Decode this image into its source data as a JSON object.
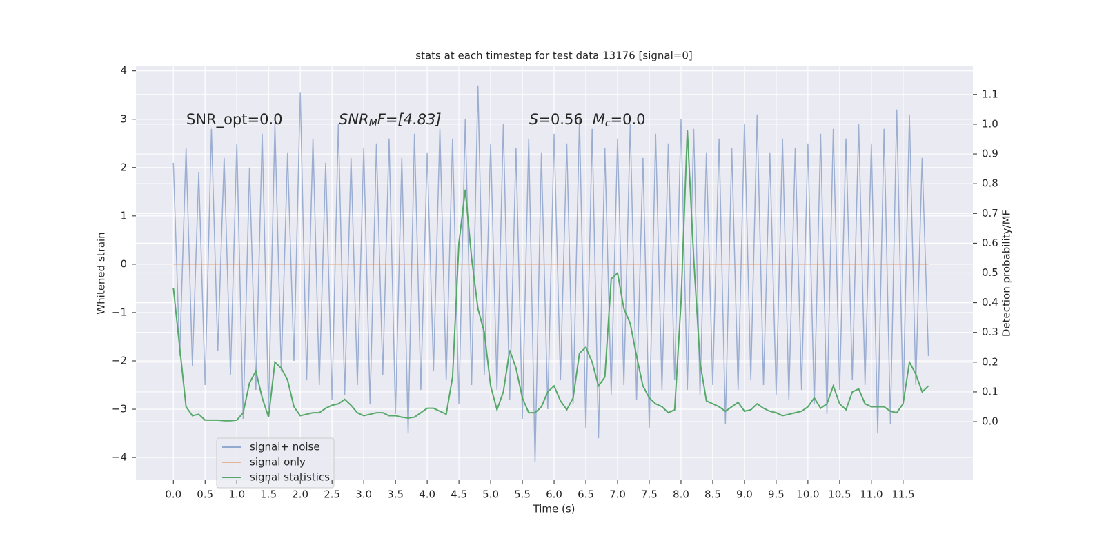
{
  "chart_data": {
    "type": "line",
    "title": "stats at each timestep for test data 13176 [signal=0]",
    "xlabel": "Time (s)",
    "ylabel": "Whitened strain",
    "y2label": "Detection probability/MF",
    "annotations": [
      [
        "SNR_opt=0.0"
      ],
      [
        "SNR",
        "M",
        "F=[4.83]"
      ],
      [
        "S",
        "=0.56",
        "M",
        "c",
        "=0.0"
      ]
    ],
    "grid": true,
    "legend": "lower left",
    "xlim": [
      -0.59,
      12.6
    ],
    "ylim": [
      -4.47,
      4.11
    ],
    "y2lim": [
      -0.197,
      1.197
    ],
    "xticks": [
      {
        "value": 0,
        "label": "0.0"
      },
      0.5,
      {
        "value": 1,
        "label": "1.0"
      },
      1.5,
      {
        "value": 2,
        "label": "2.0"
      },
      2.5,
      {
        "value": 3,
        "label": "3.0"
      },
      3.5,
      {
        "value": 4,
        "label": "4.0"
      },
      4.5,
      {
        "value": 5,
        "label": "5.0"
      },
      5.5,
      {
        "value": 6,
        "label": "6.0"
      },
      6.5,
      {
        "value": 7,
        "label": "7.0"
      },
      7.5,
      {
        "value": 8,
        "label": "8.0"
      },
      8.5,
      {
        "value": 9,
        "label": "9.0"
      },
      9.5,
      {
        "value": 10,
        "label": "10.0"
      },
      10.5,
      {
        "value": 11,
        "label": "11.0"
      },
      11.5
    ],
    "yticks": [
      {
        "value": -4,
        "label": "−4"
      },
      {
        "value": -3,
        "label": "−3"
      },
      {
        "value": -2,
        "label": "−2"
      },
      {
        "value": -1,
        "label": "−1"
      },
      0,
      1,
      2,
      3,
      4
    ],
    "y2ticks": [
      {
        "value": 0,
        "label": "0.0"
      },
      0.1,
      0.2,
      0.3,
      0.4,
      0.5,
      0.6,
      0.7,
      0.8,
      0.9,
      {
        "value": 1,
        "label": "1.0"
      },
      1.1
    ],
    "x": [
      0,
      0.1,
      0.2,
      0.3,
      0.4,
      0.5,
      0.6,
      0.7,
      0.8,
      0.9,
      1,
      1.1,
      1.2,
      1.3,
      1.4,
      1.5,
      1.6,
      1.7,
      1.8,
      1.9,
      2,
      2.1,
      2.2,
      2.3,
      2.4,
      2.5,
      2.6,
      2.7,
      2.8,
      2.9,
      3,
      3.1,
      3.2,
      3.3,
      3.4,
      3.5,
      3.6,
      3.7,
      3.8,
      3.9,
      4,
      4.1,
      4.2,
      4.3,
      4.4,
      4.5,
      4.6,
      4.7,
      4.8,
      4.9,
      5,
      5.1,
      5.2,
      5.3,
      5.4,
      5.5,
      5.6,
      5.7,
      5.8,
      5.9,
      6,
      6.1,
      6.2,
      6.3,
      6.4,
      6.5,
      6.6,
      6.7,
      6.8,
      6.9,
      7,
      7.1,
      7.2,
      7.3,
      7.4,
      7.5,
      7.6,
      7.7,
      7.8,
      7.9,
      8,
      8.1,
      8.2,
      8.3,
      8.4,
      8.5,
      8.6,
      8.7,
      8.8,
      8.9,
      9,
      9.1,
      9.2,
      9.3,
      9.4,
      9.5,
      9.6,
      9.7,
      9.8,
      9.9,
      10,
      10.1,
      10.2,
      10.3,
      10.4,
      10.5,
      10.6,
      10.7,
      10.8,
      10.9,
      11,
      11.1,
      11.2,
      11.3,
      11.4,
      11.5,
      11.6,
      11.7,
      11.8,
      11.9
    ],
    "series": [
      {
        "name": "signal+ noise",
        "color": "#4c72b0",
        "values": [
          2.1,
          -1.9,
          2.4,
          -2.1,
          1.9,
          -2.5,
          2.8,
          -1.8,
          2.2,
          -2.3,
          2.5,
          -3.2,
          2.0,
          -2.6,
          2.7,
          -3.0,
          2.9,
          -2.2,
          2.3,
          -2.0,
          3.55,
          -2.4,
          2.6,
          -2.5,
          2.1,
          -2.8,
          2.9,
          -2.7,
          2.2,
          -2.5,
          2.4,
          -2.9,
          2.5,
          -2.3,
          2.6,
          -3.1,
          2.2,
          -3.5,
          2.7,
          -2.6,
          2.3,
          -2.2,
          2.8,
          -2.4,
          2.6,
          -2.9,
          3.0,
          -2.5,
          3.7,
          -2.3,
          2.5,
          -2.6,
          2.9,
          -2.8,
          2.4,
          -3.2,
          2.6,
          -4.1,
          2.3,
          -3.0,
          2.7,
          -2.4,
          2.5,
          -2.9,
          3.0,
          -3.4,
          2.8,
          -3.6,
          2.4,
          -2.7,
          2.6,
          -2.5,
          2.9,
          -2.8,
          2.2,
          -3.4,
          2.7,
          -2.6,
          2.5,
          -2.4,
          3.0,
          -2.6,
          2.8,
          -2.7,
          2.3,
          -2.5,
          2.6,
          -3.3,
          2.4,
          -2.6,
          2.9,
          -2.4,
          3.1,
          -2.5,
          2.3,
          -2.7,
          2.6,
          -2.8,
          2.4,
          -2.6,
          2.5,
          -2.9,
          2.7,
          -3.1,
          2.8,
          -2.6,
          2.6,
          -2.4,
          2.9,
          -2.5,
          2.5,
          -3.5,
          2.8,
          -3.3,
          3.2,
          -2.9,
          3.1,
          -2.5,
          2.2,
          -1.9
        ]
      },
      {
        "name": "signal only",
        "color": "#dd8452",
        "values": [
          0,
          0,
          0,
          0,
          0,
          0,
          0,
          0,
          0,
          0,
          0,
          0,
          0,
          0,
          0,
          0,
          0,
          0,
          0,
          0,
          0,
          0,
          0,
          0,
          0,
          0,
          0,
          0,
          0,
          0,
          0,
          0,
          0,
          0,
          0,
          0,
          0,
          0,
          0,
          0,
          0,
          0,
          0,
          0,
          0,
          0,
          0,
          0,
          0,
          0,
          0,
          0,
          0,
          0,
          0,
          0,
          0,
          0,
          0,
          0,
          0,
          0,
          0,
          0,
          0,
          0,
          0,
          0,
          0,
          0,
          0,
          0,
          0,
          0,
          0,
          0,
          0,
          0,
          0,
          0,
          0,
          0,
          0,
          0,
          0,
          0,
          0,
          0,
          0,
          0,
          0,
          0,
          0,
          0,
          0,
          0,
          0,
          0,
          0,
          0,
          0,
          0,
          0,
          0,
          0,
          0,
          0,
          0,
          0,
          0,
          0,
          0,
          0,
          0,
          0,
          0,
          0,
          0,
          0,
          0
        ]
      },
      {
        "name": "signal statistics",
        "color": "#55a868",
        "axis": "y2",
        "values": [
          0.45,
          0.25,
          0.05,
          0.02,
          0.025,
          0.005,
          0.005,
          0.005,
          0.003,
          0.003,
          0.005,
          0.03,
          0.13,
          0.17,
          0.08,
          0.015,
          0.2,
          0.18,
          0.14,
          0.05,
          0.02,
          0.025,
          0.03,
          0.03,
          0.045,
          0.055,
          0.06,
          0.075,
          0.055,
          0.03,
          0.02,
          0.025,
          0.03,
          0.03,
          0.02,
          0.02,
          0.015,
          0.012,
          0.015,
          0.03,
          0.045,
          0.045,
          0.035,
          0.025,
          0.15,
          0.6,
          0.78,
          0.55,
          0.38,
          0.3,
          0.12,
          0.04,
          0.1,
          0.24,
          0.18,
          0.08,
          0.03,
          0.03,
          0.05,
          0.1,
          0.12,
          0.07,
          0.04,
          0.08,
          0.23,
          0.25,
          0.2,
          0.12,
          0.15,
          0.48,
          0.5,
          0.38,
          0.33,
          0.22,
          0.12,
          0.08,
          0.06,
          0.05,
          0.03,
          0.04,
          0.4,
          0.98,
          0.55,
          0.2,
          0.07,
          0.06,
          0.05,
          0.035,
          0.05,
          0.065,
          0.035,
          0.04,
          0.06,
          0.045,
          0.035,
          0.03,
          0.02,
          0.025,
          0.03,
          0.035,
          0.05,
          0.08,
          0.045,
          0.06,
          0.12,
          0.06,
          0.04,
          0.1,
          0.11,
          0.06,
          0.05,
          0.05,
          0.05,
          0.035,
          0.03,
          0.06,
          0.2,
          0.16,
          0.1,
          0.12
        ]
      }
    ]
  }
}
